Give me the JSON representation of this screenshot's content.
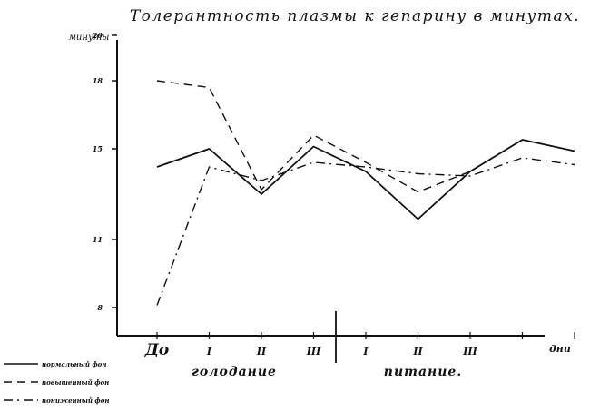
{
  "chart_data": {
    "type": "line",
    "title": "Толерантность плазмы к гепарину в минутах.",
    "ylabel": "минуты",
    "xlabel": "дни",
    "ylim": [
      7,
      21
    ],
    "y_ticks": [
      {
        "value": 20,
        "label": "20"
      },
      {
        "value": 18,
        "label": "18"
      },
      {
        "value": 15,
        "label": "15"
      },
      {
        "value": 11,
        "label": "11"
      },
      {
        "value": 8,
        "label": "8"
      }
    ],
    "x_ticks": [
      "До",
      "I",
      "II",
      "III",
      "I",
      "II",
      "III",
      "",
      "",
      ""
    ],
    "groups": [
      {
        "label": "голодание"
      },
      {
        "label": "питание."
      }
    ],
    "series": [
      {
        "name": "нормальный фон",
        "style": "solid",
        "points": [
          [
            1,
            14.2
          ],
          [
            2,
            15.0
          ],
          [
            3,
            13.0
          ],
          [
            4,
            15.1
          ],
          [
            5,
            14.0
          ],
          [
            6,
            11.9
          ],
          [
            7,
            14.0
          ],
          [
            8,
            15.4
          ],
          [
            9,
            14.9
          ]
        ]
      },
      {
        "name": "повышенный фон",
        "style": "dashed",
        "points": [
          [
            1,
            18.0
          ],
          [
            2,
            17.7
          ],
          [
            3,
            13.2
          ],
          [
            4,
            15.6
          ],
          [
            5,
            14.4
          ],
          [
            6,
            13.1
          ],
          [
            7,
            14.0
          ],
          [
            8,
            15.4
          ]
        ]
      },
      {
        "name": "пониженный фон",
        "style": "dashdot",
        "points": [
          [
            1,
            8.1
          ],
          [
            2,
            14.2
          ],
          [
            3,
            13.6
          ],
          [
            4,
            14.4
          ],
          [
            5,
            14.2
          ],
          [
            6,
            13.9
          ],
          [
            7,
            13.8
          ],
          [
            8,
            14.6
          ],
          [
            9,
            14.3
          ]
        ]
      }
    ],
    "colors": {
      "ink": "#111111"
    }
  }
}
